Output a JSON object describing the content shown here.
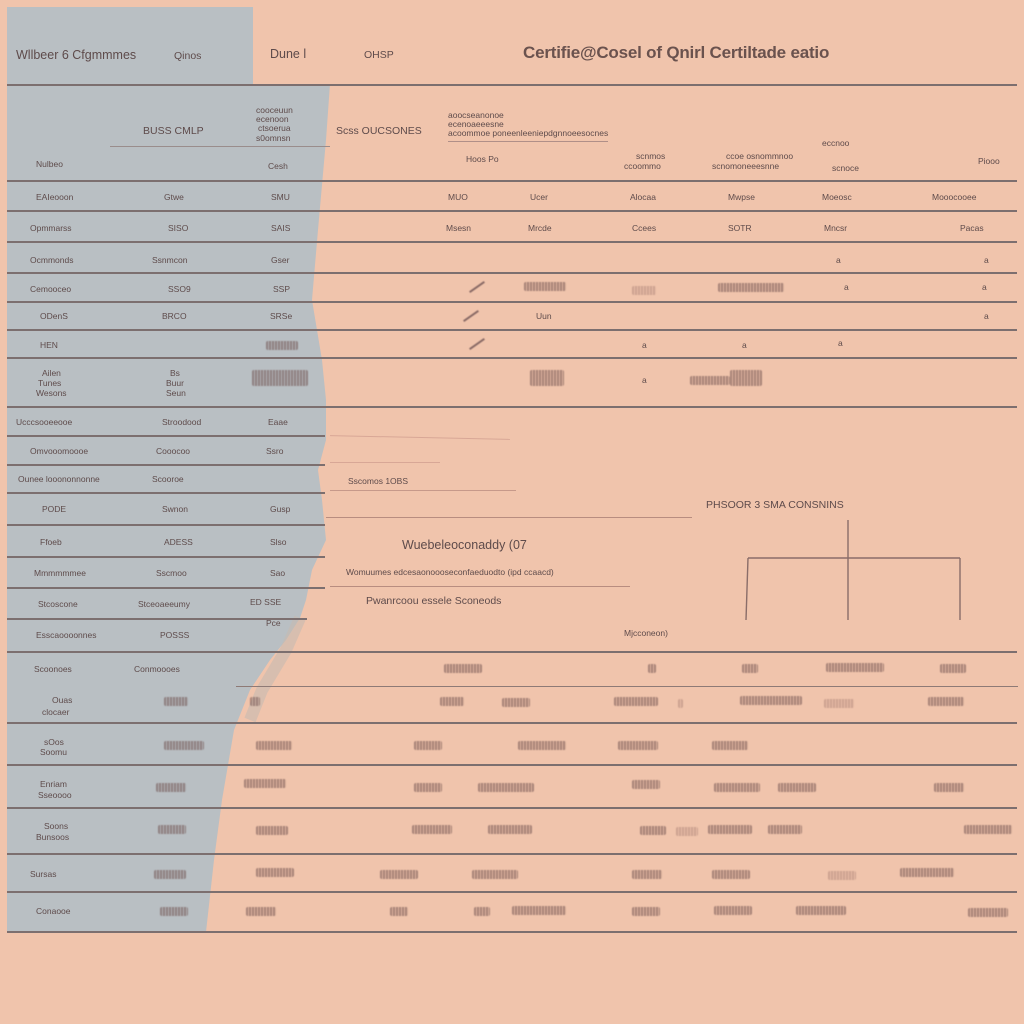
{
  "header": {
    "col1": "Wllbeer 6 Cfgmmmes",
    "col2": "Qinos",
    "col3": "Dune l",
    "col4": "OHSP",
    "title": "Certifie@Cosel of Qnirl Certiltade eatio"
  },
  "subheader": {
    "left_label": "BUSS CMLP",
    "mid_lines": [
      "cooceuun",
      "ecenoon",
      "ctsoerua",
      "s0omnsn"
    ],
    "mid_label": "Scss OUCSONES",
    "right_label": "acoommoe poneenleeniepdgnnoeesocnes",
    "right_small": [
      "aoocseanonoe",
      "ecenoaeeesne"
    ]
  },
  "columns": {
    "c1": "Nulbeo",
    "c2": "Cesh",
    "c3": "Hoos Po",
    "c4": [
      "scnmos",
      "ccoommo"
    ],
    "c5": [
      "ccoe osnommnoo",
      "scnomoneeesnne"
    ],
    "c6": [
      "eccnoo",
      "scnoce"
    ],
    "c7": "Piooo"
  },
  "rows_top": [
    {
      "label": "EAIeooon",
      "v1": "Gtwe",
      "v2": "SMU",
      "v3": "MUO",
      "v4": "Ucer",
      "v5": "Alocaa",
      "v6": "Mwpse",
      "v7": "Moeosc",
      "v8": "Mooocooee"
    },
    {
      "label": "Opmmarss",
      "v1": "SISO",
      "v2": "SAIS",
      "v3": "Msesn",
      "v4": "Mrcde",
      "v5": "Ccees",
      "v6": "SOTR",
      "v7": "Mncsr",
      "v8": "Pacas"
    },
    {
      "label": "Ocmmonds",
      "v1": "Ssnmcon",
      "v2": "Gser"
    },
    {
      "label": "Cemooceo",
      "v1": "SSO9",
      "v2": "SSP"
    },
    {
      "label": "ODenS",
      "v1": "BRCO",
      "v2": "SRSe",
      "v3": "Uun"
    },
    {
      "label": "HEN"
    },
    {
      "label_lines": [
        "Ailen",
        "Tunes",
        "Wesons"
      ],
      "v1_lines": [
        "Bs",
        "Buur",
        "Seun"
      ]
    }
  ],
  "rows_mid": [
    {
      "label": "Ucccsooeeooe",
      "v1": "Stroodood",
      "v2": "Eaae"
    },
    {
      "label": "Omvooomoooe",
      "v1": "Cooocoo",
      "v2": "Ssro"
    },
    {
      "label": "Ounee looononnonne",
      "v1": "Scooroe",
      "text": "Sscomos  1OBS"
    },
    {
      "label": "PODE",
      "v1": "Swnon",
      "v2": "Gusp"
    },
    {
      "label": "Ffoeb",
      "v1": "ADESS",
      "v2": "Slso"
    },
    {
      "label": "Mmmmmmee",
      "v1": "Sscmoo",
      "v2": "Sao"
    },
    {
      "label": "Stcoscone",
      "v1": "Stceoaeeumy",
      "v2": "ED  SSE"
    },
    {
      "label": "Esscaoooonnes",
      "v1": "POSSS",
      "v2": "Pce"
    }
  ],
  "mid_texts": {
    "heading": "Wuebeleoconaddy (07",
    "line1": "Womuumes edcesaonoooseconfaeduodto (ipd ccaacd)",
    "line2": "Pwanrcoou essele Sconeods",
    "footnote": "Mjcconeon)",
    "diagram_title": "PHSOOR 3 SMA CONSNINS"
  },
  "rows_bottom": [
    {
      "label": "Scoonoes",
      "v1": "Conmoooes"
    },
    {
      "label_lines": [
        "Ouas",
        "clocaer"
      ]
    },
    {
      "label_lines": [
        "sOos",
        "Soomu"
      ]
    },
    {
      "label_lines": [
        "Enriam",
        "Sseoooo"
      ]
    },
    {
      "label_lines": [
        "Soons",
        "Bunsoos"
      ]
    },
    {
      "label": "Sursas"
    },
    {
      "label": "Conaooe"
    }
  ]
}
